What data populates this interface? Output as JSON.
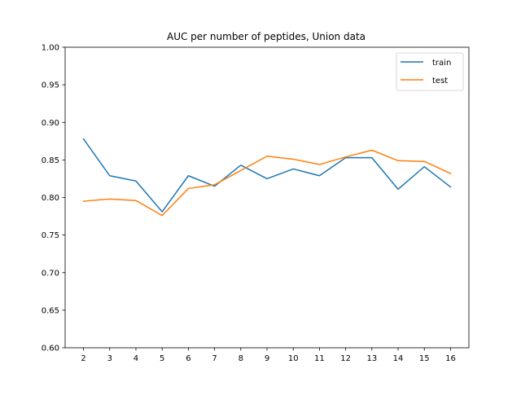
{
  "chart_data": {
    "type": "line",
    "title": "AUC per number of peptides, Union data",
    "xlabel": "",
    "ylabel": "",
    "x": [
      2,
      3,
      4,
      5,
      6,
      7,
      8,
      9,
      10,
      11,
      12,
      13,
      14,
      15,
      16
    ],
    "xlim": [
      1.3,
      16.7
    ],
    "ylim": [
      0.6,
      1.0
    ],
    "yticks": [
      0.6,
      0.65,
      0.7,
      0.75,
      0.8,
      0.85,
      0.9,
      0.95,
      1.0
    ],
    "ytick_labels": [
      "0.60",
      "0.65",
      "0.70",
      "0.75",
      "0.80",
      "0.85",
      "0.90",
      "0.95",
      "1.00"
    ],
    "xtick_labels": [
      "2",
      "3",
      "4",
      "5",
      "6",
      "7",
      "8",
      "9",
      "10",
      "11",
      "12",
      "13",
      "14",
      "15",
      "16"
    ],
    "grid": false,
    "legend_position": "top-right",
    "series": [
      {
        "name": "train",
        "color": "#1f77b4",
        "values": [
          0.878,
          0.829,
          0.822,
          0.781,
          0.829,
          0.815,
          0.843,
          0.825,
          0.838,
          0.829,
          0.853,
          0.853,
          0.811,
          0.841,
          0.814
        ]
      },
      {
        "name": "test",
        "color": "#ff7f0e",
        "values": [
          0.795,
          0.798,
          0.796,
          0.776,
          0.812,
          0.817,
          0.836,
          0.855,
          0.851,
          0.844,
          0.854,
          0.863,
          0.849,
          0.848,
          0.832
        ]
      }
    ]
  }
}
